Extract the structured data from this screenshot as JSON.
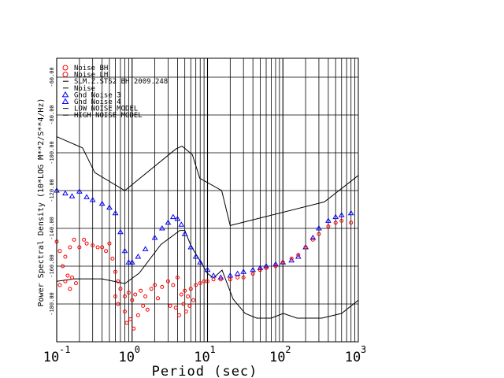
{
  "chart_data": {
    "type": "scatter",
    "xlabel": "Period (sec)",
    "ylabel": "Power Spectral Density (10*LOG M**2/S**4/Hz)",
    "x_scale": "log",
    "xlim": [
      0.1,
      1000
    ],
    "ylim": [
      -200,
      -50
    ],
    "x_ticks": [
      {
        "value": 0.1,
        "base": "10",
        "exp": "-1"
      },
      {
        "value": 1,
        "base": "10",
        "exp": "0"
      },
      {
        "value": 10,
        "base": "10",
        "exp": "1"
      },
      {
        "value": 100,
        "base": "10",
        "exp": "2"
      },
      {
        "value": 1000,
        "base": "10",
        "exp": "3"
      }
    ],
    "y_ticks": [
      {
        "value": -60,
        "label": "-60.00"
      },
      {
        "value": -80,
        "label": "-80.00"
      },
      {
        "value": -100,
        "label": "-100.00"
      },
      {
        "value": -120,
        "label": "-120.00"
      },
      {
        "value": -140,
        "label": "-140.00"
      },
      {
        "value": -160,
        "label": "-160.00"
      },
      {
        "value": -180,
        "label": "-180.00"
      }
    ],
    "grid": true,
    "legend_position": "top-left",
    "legend": [
      {
        "label": "Noise BH",
        "color": "#ff0000",
        "symbol": "circle"
      },
      {
        "label": "Noise LH",
        "color": "#ff0000",
        "symbol": "circle"
      },
      {
        "label": "SLM.Z.STS2 BH  2009.248",
        "color": "#000000",
        "symbol": "line"
      },
      {
        "label": "Noise",
        "color": "#000000",
        "symbol": "line"
      },
      {
        "label": "Gnd Noise 3",
        "color": "#0000ff",
        "symbol": "triangle"
      },
      {
        "label": "Gnd Noise 4",
        "color": "#0000ff",
        "symbol": "triangle"
      },
      {
        "label": "LOW NOISE MODEL",
        "color": "#000000",
        "symbol": "line"
      },
      {
        "label": "HIGH NOISE MODEL",
        "color": "#000000",
        "symbol": "line"
      }
    ],
    "series": [
      {
        "id": "low_noise_model",
        "kind": "line",
        "color": "#000000",
        "x": [
          0.1,
          0.17,
          0.4,
          0.8,
          1.24,
          2.4,
          4.3,
          5,
          6,
          10,
          12,
          15.6,
          21.9,
          31.6,
          45,
          70,
          101,
          154,
          328,
          600,
          1000
        ],
        "y": [
          -168.0,
          -166.7,
          -166.7,
          -169.2,
          -163.7,
          -148.6,
          -141.1,
          -141.1,
          -149.0,
          -163.8,
          -166.2,
          -162.1,
          -177.5,
          -185.0,
          -187.5,
          -187.5,
          -185.0,
          -187.5,
          -187.5,
          -185.0,
          -178.0
        ]
      },
      {
        "id": "high_noise_model",
        "kind": "line",
        "color": "#000000",
        "x": [
          0.1,
          0.22,
          0.32,
          0.8,
          3.8,
          4.6,
          6.3,
          7.9,
          15.4,
          20,
          354.8,
          1000
        ],
        "y": [
          -91.5,
          -97.4,
          -110.5,
          -120.0,
          -98.0,
          -96.5,
          -101.0,
          -113.5,
          -120.0,
          -138.5,
          -126.0,
          -112.0
        ]
      },
      {
        "id": "gnd_noise_blue",
        "kind": "scatter",
        "color": "#0000ff",
        "marker": "triangle",
        "x": [
          0.1,
          0.13,
          0.16,
          0.2,
          0.25,
          0.3,
          0.4,
          0.5,
          0.6,
          0.7,
          0.8,
          0.9,
          1.0,
          1.2,
          1.5,
          2.0,
          2.5,
          3.0,
          3.5,
          4.0,
          4.5,
          5.0,
          6.0,
          7.0,
          8.0,
          10.0,
          12.0,
          15.0,
          20.0,
          25.0,
          30.0,
          40.0,
          50.0,
          60.0,
          80.0,
          100.0,
          130.0,
          160.0,
          200.0,
          250.0,
          300.0,
          400.0,
          500.0,
          600.0,
          800.0
        ],
        "y": [
          -120.0,
          -121.5,
          -123.0,
          -120.5,
          -123.5,
          -125.0,
          -127.0,
          -129.0,
          -132.0,
          -142.0,
          -152.0,
          -158.0,
          -158.0,
          -155.0,
          -151.0,
          -145.0,
          -140.0,
          -137.0,
          -134.0,
          -135.0,
          -138.0,
          -143.0,
          -150.0,
          -155.0,
          -158.0,
          -162.0,
          -165.0,
          -166.0,
          -165.0,
          -164.0,
          -163.0,
          -162.0,
          -161.0,
          -160.0,
          -159.0,
          -158.0,
          -157.0,
          -155.0,
          -150.0,
          -145.0,
          -140.0,
          -136.0,
          -134.0,
          -133.0,
          -132.0
        ]
      },
      {
        "id": "noise_red",
        "kind": "scatter",
        "color": "#ff0000",
        "marker": "circle",
        "x": [
          0.1,
          0.11,
          0.12,
          0.13,
          0.14,
          0.15,
          0.17,
          0.2,
          0.23,
          0.25,
          0.3,
          0.35,
          0.4,
          0.45,
          0.5,
          0.55,
          0.6,
          0.65,
          0.7,
          0.8,
          0.9,
          1.0,
          1.1,
          1.3,
          1.5,
          1.8,
          2.0,
          2.5,
          3.0,
          3.5,
          4.0,
          4.5,
          5.0,
          5.5,
          6.0,
          7.0,
          8.0,
          9.0,
          10.0,
          12.0,
          15.0,
          20.0,
          25.0,
          30.0,
          40.0,
          50.0,
          60.0,
          80.0,
          100.0,
          130.0,
          160.0,
          200.0,
          250.0,
          300.0,
          400.0,
          500.0,
          600.0,
          800.0
        ],
        "y": [
          -147.0,
          -152.0,
          -160.0,
          -155.0,
          -165.0,
          -150.0,
          -146.0,
          -150.0,
          -146.0,
          -148.0,
          -149.0,
          -150.0,
          -150.0,
          -152.0,
          -148.0,
          -156.0,
          -163.0,
          -168.0,
          -172.0,
          -176.0,
          -174.0,
          -178.0,
          -175.0,
          -173.0,
          -176.0,
          -172.0,
          -170.0,
          -171.0,
          -168.0,
          -170.0,
          -166.0,
          -175.0,
          -173.0,
          -176.0,
          -172.0,
          -170.0,
          -169.0,
          -168.0,
          -168.0,
          -167.0,
          -167.0,
          -167.0,
          -166.0,
          -166.0,
          -164.0,
          -162.0,
          -161.0,
          -160.0,
          -158.0,
          -156.0,
          -154.0,
          -150.0,
          -146.0,
          -143.0,
          -139.0,
          -137.0,
          -136.0,
          -137.0
        ]
      },
      {
        "id": "noise_red_scatter",
        "kind": "scatter",
        "color": "#ff0000",
        "marker": "circle",
        "x": [
          0.11,
          0.13,
          0.15,
          0.16,
          0.18,
          0.6,
          0.65,
          0.8,
          0.85,
          0.95,
          1.05,
          1.2,
          1.4,
          1.6,
          2.2,
          3.2,
          3.8,
          4.2,
          4.8,
          5.2,
          5.8,
          6.5
        ],
        "y": [
          -170.0,
          -168.0,
          -172.0,
          -166.0,
          -169.0,
          -176.0,
          -180.0,
          -184.0,
          -190.0,
          -188.0,
          -193.0,
          -186.0,
          -181.0,
          -183.0,
          -177.0,
          -181.0,
          -182.0,
          -186.0,
          -180.0,
          -184.0,
          -181.0,
          -178.0
        ]
      }
    ]
  }
}
